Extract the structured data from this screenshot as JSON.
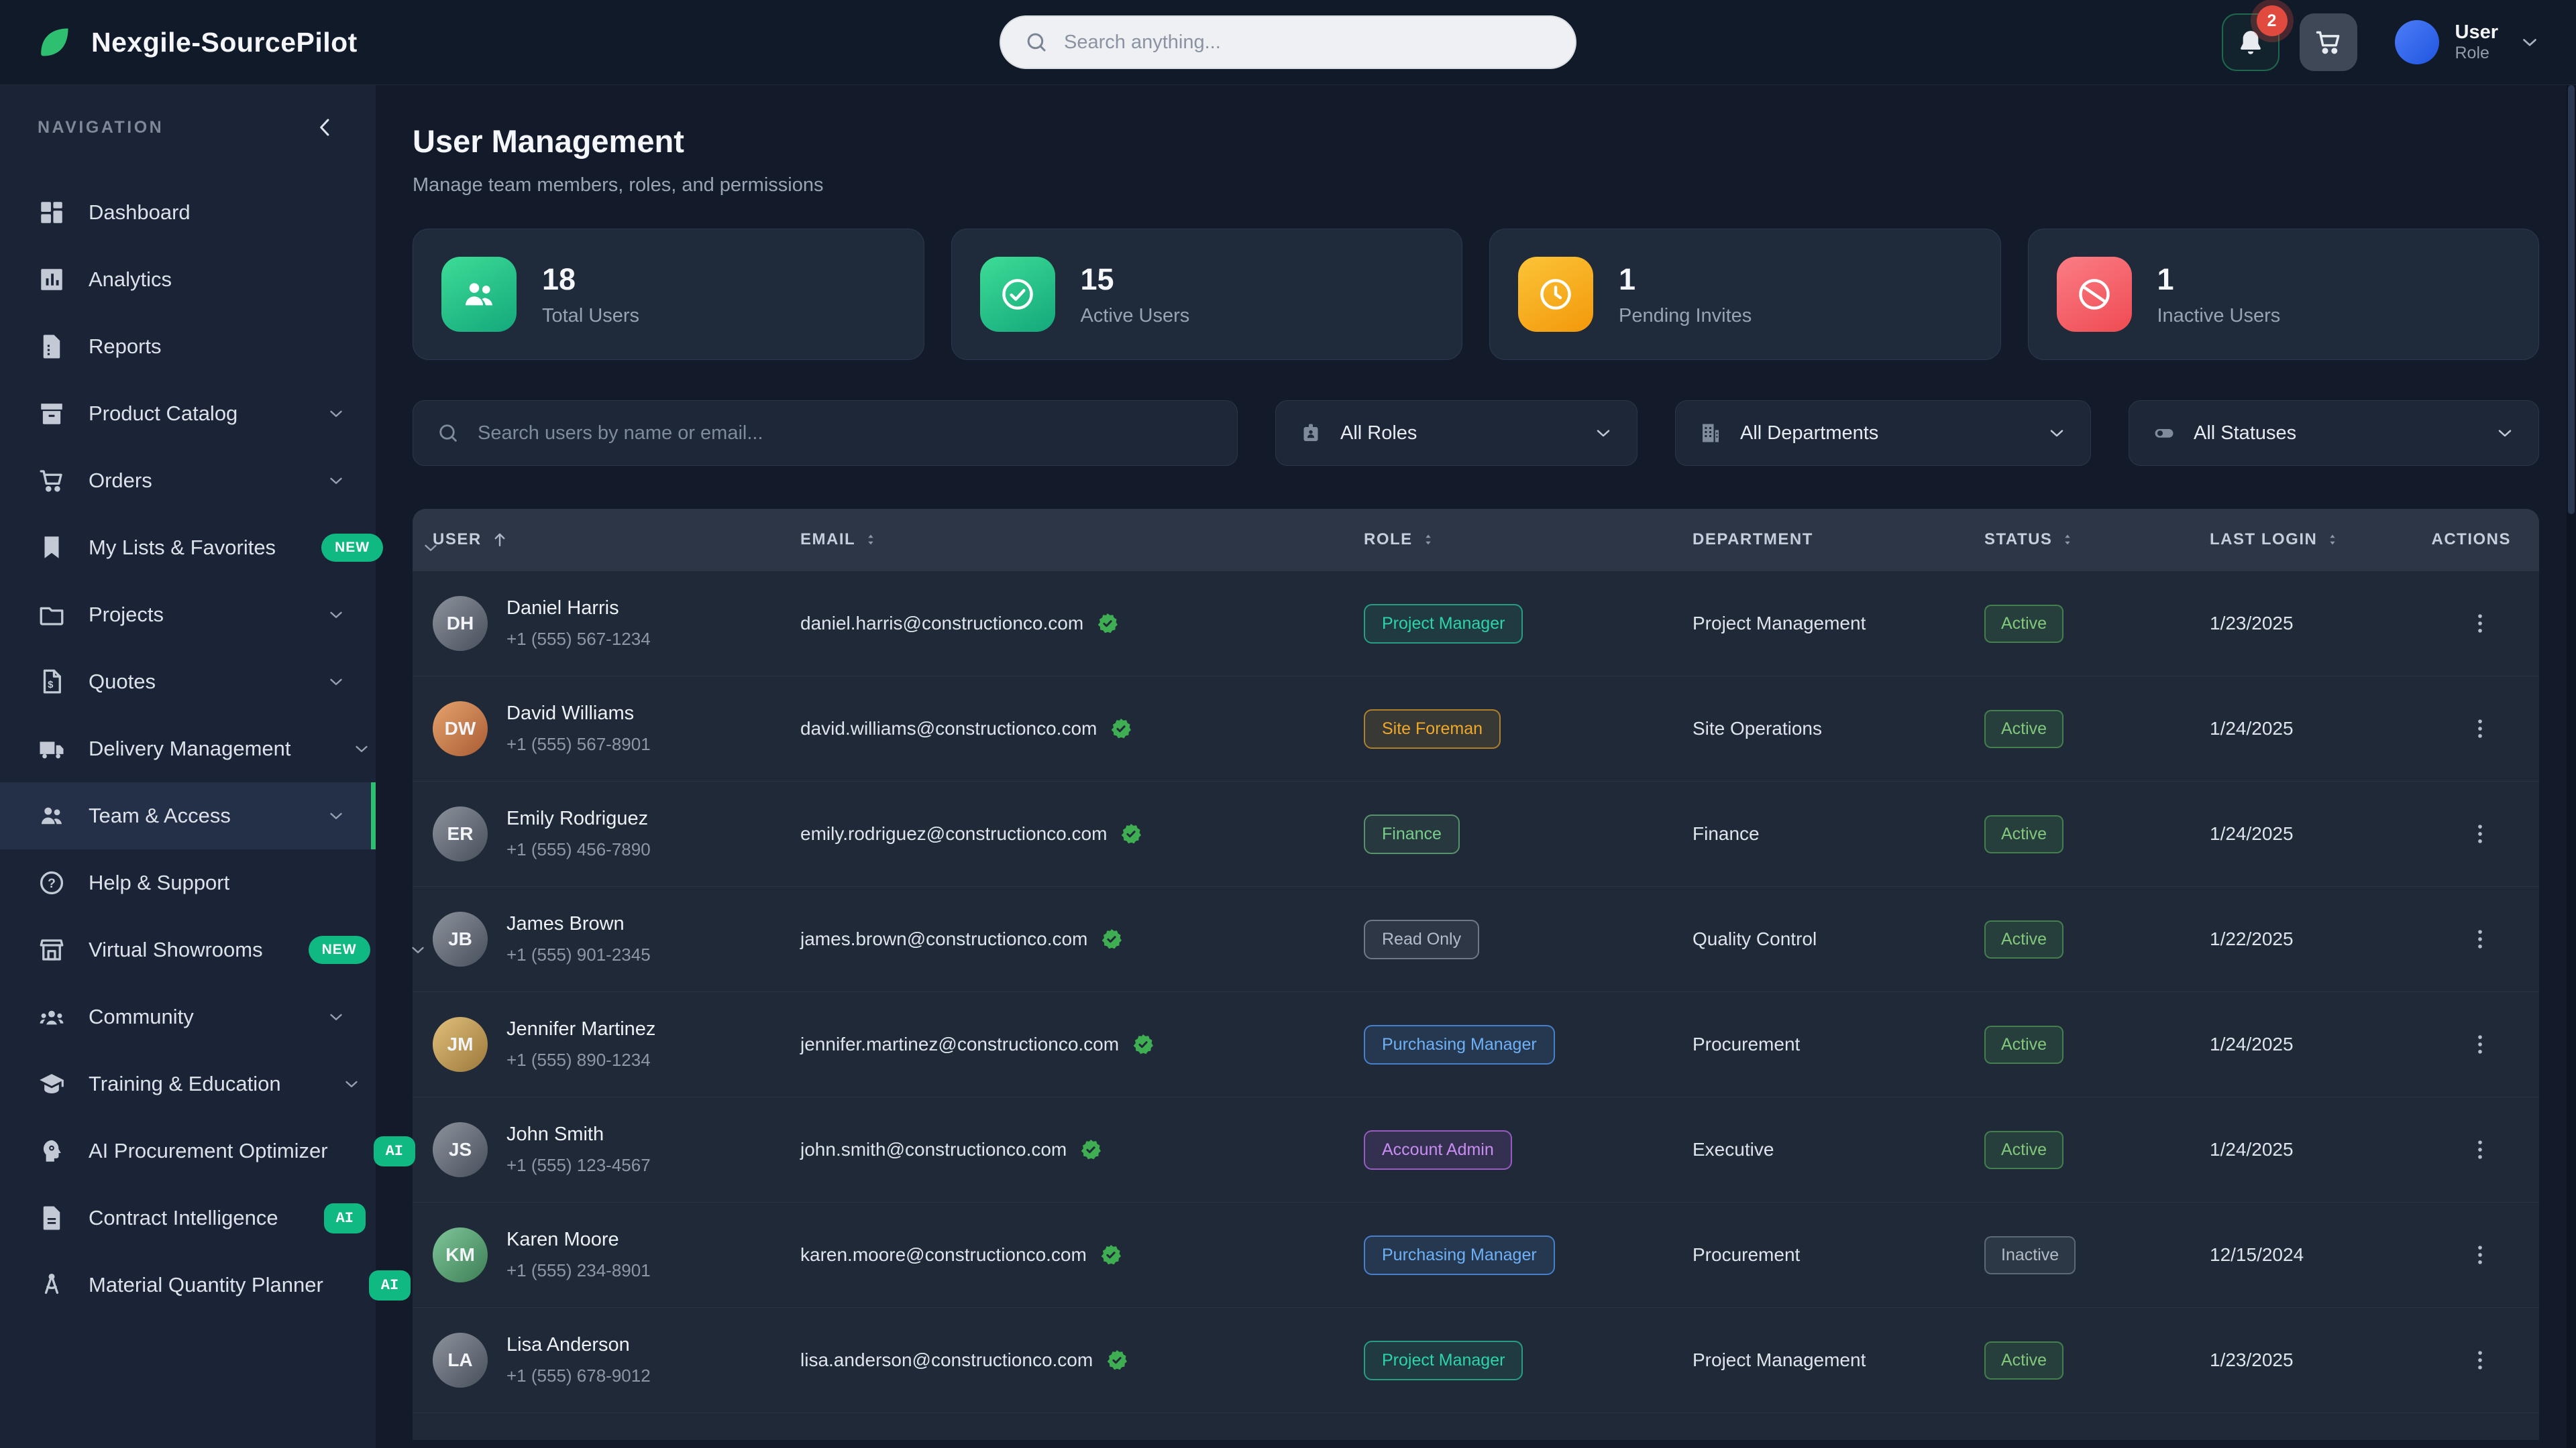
{
  "brand": {
    "name": "Nexgile-SourcePilot"
  },
  "topbar": {
    "search_placeholder": "Search anything...",
    "notifications_count": "2",
    "user": {
      "name": "User",
      "role": "Role"
    }
  },
  "sidebar": {
    "section_label": "NAVIGATION",
    "items": [
      {
        "label": "Dashboard",
        "icon": "dashboard-icon"
      },
      {
        "label": "Analytics",
        "icon": "analytics-icon"
      },
      {
        "label": "Reports",
        "icon": "reports-icon"
      },
      {
        "label": "Product Catalog",
        "icon": "product-catalog-icon",
        "expandable": true
      },
      {
        "label": "Orders",
        "icon": "orders-icon",
        "expandable": true
      },
      {
        "label": "My Lists & Favorites",
        "icon": "lists-favorites-icon",
        "badge": "NEW",
        "expandable": true
      },
      {
        "label": "Projects",
        "icon": "projects-icon",
        "expandable": true
      },
      {
        "label": "Quotes",
        "icon": "quotes-icon",
        "expandable": true
      },
      {
        "label": "Delivery Management",
        "icon": "delivery-icon",
        "expandable": true
      },
      {
        "label": "Team & Access",
        "icon": "team-icon",
        "expandable": true,
        "active": true
      },
      {
        "label": "Help & Support",
        "icon": "help-icon"
      },
      {
        "label": "Virtual Showrooms",
        "icon": "showrooms-icon",
        "badge": "NEW",
        "expandable": true
      },
      {
        "label": "Community",
        "icon": "community-icon",
        "expandable": true
      },
      {
        "label": "Training & Education",
        "icon": "training-icon",
        "expandable": true
      },
      {
        "label": "AI Procurement Optimizer",
        "icon": "ai-optimizer-icon",
        "ai_badge": "AI"
      },
      {
        "label": "Contract Intelligence",
        "icon": "contract-icon",
        "ai_badge": "AI"
      },
      {
        "label": "Material Quantity Planner",
        "icon": "material-planner-icon",
        "ai_badge": "AI"
      }
    ]
  },
  "page": {
    "title": "User Management",
    "subtitle": "Manage team members, roles, and permissions"
  },
  "stats": [
    {
      "value": "18",
      "label": "Total Users",
      "icon": "users-icon",
      "accent": "green"
    },
    {
      "value": "15",
      "label": "Active Users",
      "icon": "check-circle-icon",
      "accent": "green"
    },
    {
      "value": "1",
      "label": "Pending Invites",
      "icon": "clock-icon",
      "accent": "amber"
    },
    {
      "value": "1",
      "label": "Inactive Users",
      "icon": "ban-icon",
      "accent": "red"
    }
  ],
  "filters": {
    "search_placeholder": "Search users by name or email...",
    "roles_label": "All Roles",
    "departments_label": "All Departments",
    "statuses_label": "All Statuses"
  },
  "colors": {
    "brand_green": "#2fbf71",
    "active_status": "#4ade80",
    "notification_red": "#e04a3f"
  },
  "table": {
    "columns": [
      {
        "label": "USER",
        "sort": "asc"
      },
      {
        "label": "EMAIL",
        "sort": "both"
      },
      {
        "label": "ROLE",
        "sort": "both"
      },
      {
        "label": "DEPARTMENT",
        "sort": "none"
      },
      {
        "label": "STATUS",
        "sort": "both"
      },
      {
        "label": "LAST LOGIN",
        "sort": "both"
      },
      {
        "label": "ACTIONS",
        "sort": "none"
      }
    ],
    "rows": [
      {
        "name": "Daniel Harris",
        "phone": "+1 (555) 567-1234",
        "email": "daniel.harris@constructionco.com",
        "verified": true,
        "role": "Project Manager",
        "role_color": "teal",
        "department": "Project Management",
        "status": "Active",
        "last_login": "1/23/2025",
        "avatar_tone": "gray"
      },
      {
        "name": "David Williams",
        "phone": "+1 (555) 567-8901",
        "email": "david.williams@constructionco.com",
        "verified": true,
        "role": "Site Foreman",
        "role_color": "amber",
        "department": "Site Operations",
        "status": "Active",
        "last_login": "1/24/2025",
        "avatar_tone": "warm"
      },
      {
        "name": "Emily Rodriguez",
        "phone": "+1 (555) 456-7890",
        "email": "emily.rodriguez@constructionco.com",
        "verified": true,
        "role": "Finance",
        "role_color": "green",
        "department": "Finance",
        "status": "Active",
        "last_login": "1/24/2025",
        "avatar_tone": "gray"
      },
      {
        "name": "James Brown",
        "phone": "+1 (555) 901-2345",
        "email": "james.brown@constructionco.com",
        "verified": true,
        "role": "Read Only",
        "role_color": "gray",
        "department": "Quality Control",
        "status": "Active",
        "last_login": "1/22/2025",
        "avatar_tone": "gray"
      },
      {
        "name": "Jennifer Martinez",
        "phone": "+1 (555) 890-1234",
        "email": "jennifer.martinez@constructionco.com",
        "verified": true,
        "role": "Purchasing Manager",
        "role_color": "blue",
        "department": "Procurement",
        "status": "Active",
        "last_login": "1/24/2025",
        "avatar_tone": "gold"
      },
      {
        "name": "John Smith",
        "phone": "+1 (555) 123-4567",
        "email": "john.smith@constructionco.com",
        "verified": true,
        "role": "Account Admin",
        "role_color": "purple",
        "department": "Executive",
        "status": "Active",
        "last_login": "1/24/2025",
        "avatar_tone": "gray"
      },
      {
        "name": "Karen Moore",
        "phone": "+1 (555) 234-8901",
        "email": "karen.moore@constructionco.com",
        "verified": true,
        "role": "Purchasing Manager",
        "role_color": "blue",
        "department": "Procurement",
        "status": "Inactive",
        "last_login": "12/15/2024",
        "avatar_tone": "green"
      },
      {
        "name": "Lisa Anderson",
        "phone": "+1 (555) 678-9012",
        "email": "lisa.anderson@constructionco.com",
        "verified": true,
        "role": "Project Manager",
        "role_color": "teal",
        "department": "Project Management",
        "status": "Active",
        "last_login": "1/23/2025",
        "avatar_tone": "gray"
      }
    ]
  }
}
